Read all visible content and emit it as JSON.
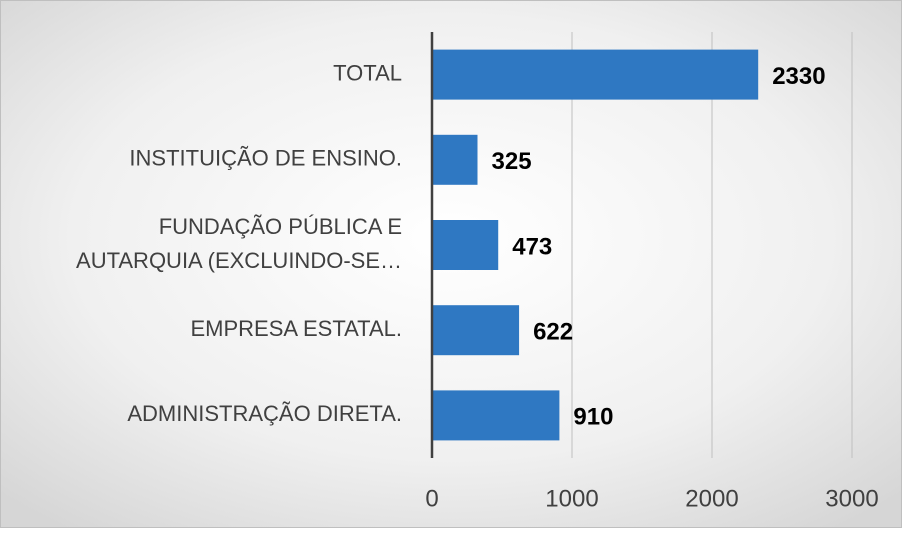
{
  "chart_data": {
    "type": "barh",
    "categories": [
      "TOTAL",
      "INSTITUIÇÃO DE ENSINO.",
      "FUNDAÇÃO PÚBLICA E\nAUTARQUIA (EXCLUINDO-SE…",
      "EMPRESA ESTATAL.",
      "ADMINISTRAÇÃO DIRETA."
    ],
    "values": [
      2330,
      325,
      473,
      622,
      910
    ],
    "color": "#2f78c2",
    "xlim": [
      0,
      3000
    ],
    "xticks": [
      0,
      1000,
      2000,
      3000
    ],
    "grid": true
  }
}
